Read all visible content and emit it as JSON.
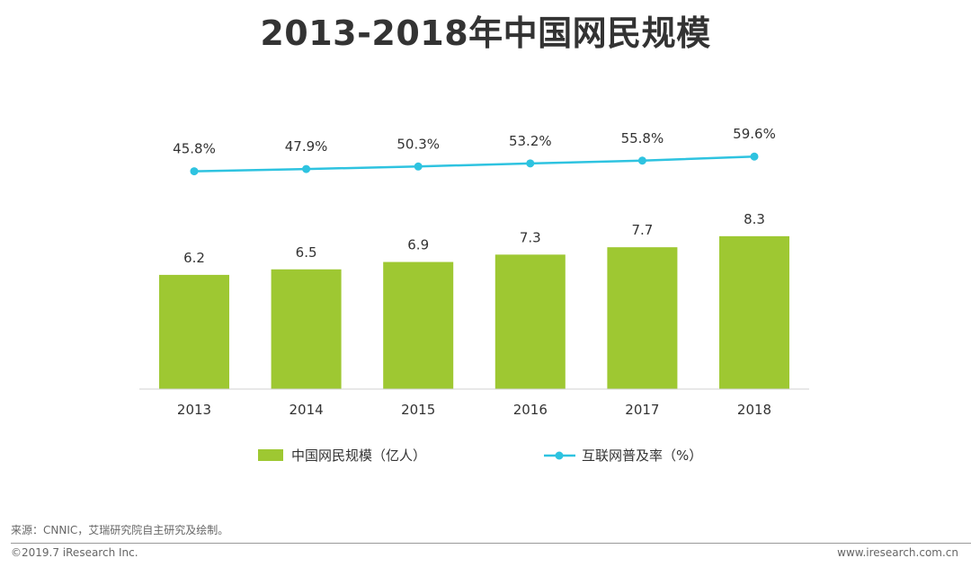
{
  "title": "2013-2018年中国网民规模",
  "chart_data": {
    "type": "bar",
    "categories": [
      "2013",
      "2014",
      "2015",
      "2016",
      "2017",
      "2018"
    ],
    "series": [
      {
        "name": "中国网民规模（亿人）",
        "type": "bar",
        "values": [
          6.2,
          6.5,
          6.9,
          7.3,
          7.7,
          8.3
        ],
        "labels": [
          "6.2",
          "6.5",
          "6.9",
          "7.3",
          "7.7",
          "8.3"
        ],
        "color": "#9ec832"
      },
      {
        "name": "互联网普及率（%）",
        "type": "line",
        "values": [
          45.8,
          47.9,
          50.3,
          53.2,
          55.8,
          59.6
        ],
        "labels": [
          "45.8%",
          "47.9%",
          "50.3%",
          "53.2%",
          "55.8%",
          "59.6%"
        ],
        "color": "#2ec3e0"
      }
    ],
    "legend": "bottom",
    "grid": false
  },
  "footer": {
    "source": "来源：CNNIC，艾瑞研究院自主研究及绘制。",
    "copyright": "©2019.7 iResearch Inc.",
    "website": "www.iresearch.com.cn"
  }
}
